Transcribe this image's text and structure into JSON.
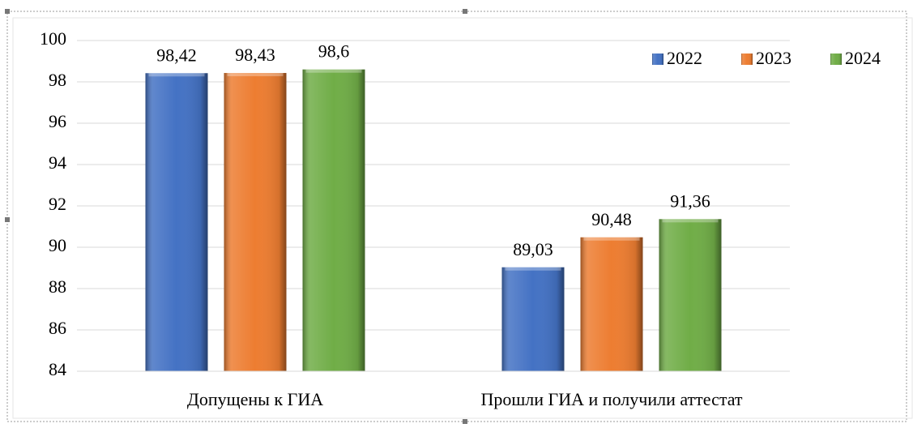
{
  "chart_data": {
    "type": "bar",
    "categories": [
      "Допущены  к ГИА",
      "Прошли ГИА и получили  аттестат"
    ],
    "series": [
      {
        "name": "2022",
        "color": "#4472c4",
        "values": [
          98.42,
          89.03
        ],
        "value_labels": [
          "98,42",
          "89,03"
        ]
      },
      {
        "name": "2023",
        "color": "#ed7d31",
        "values": [
          98.43,
          90.48
        ],
        "value_labels": [
          "98,43",
          "90,48"
        ]
      },
      {
        "name": "2024",
        "color": "#70ad47",
        "values": [
          98.6,
          91.36
        ],
        "value_labels": [
          "98,6",
          "91,36"
        ]
      }
    ],
    "ylim": [
      84,
      100
    ],
    "yticks": [
      84,
      86,
      88,
      90,
      92,
      94,
      96,
      98,
      100
    ],
    "grid": true,
    "legend": "top-right"
  }
}
